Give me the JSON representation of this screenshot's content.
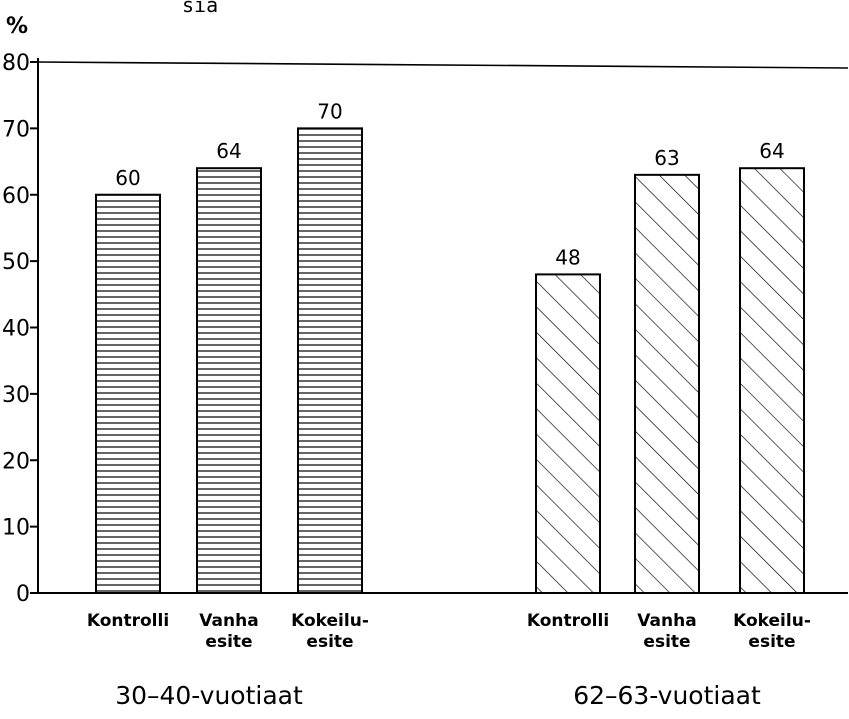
{
  "header_fragment": "sia",
  "chart_data": {
    "type": "bar",
    "ylabel": "%",
    "ylim": [
      0,
      80
    ],
    "yticks": [
      "0",
      "10",
      "20",
      "30",
      "40",
      "50",
      "60",
      "70",
      "80"
    ],
    "groups": [
      {
        "name": "30–40-vuotiaat",
        "pattern": "horizontal",
        "categories": [
          {
            "label": [
              "Kontrolli"
            ],
            "value": 60
          },
          {
            "label": [
              "Vanha",
              "esite"
            ],
            "value": 64
          },
          {
            "label": [
              "Kokeilu-",
              "esite"
            ],
            "value": 70
          }
        ]
      },
      {
        "name": "62–63-vuotiaat",
        "pattern": "diagonal",
        "categories": [
          {
            "label": [
              "Kontrolli"
            ],
            "value": 48
          },
          {
            "label": [
              "Vanha",
              "esite"
            ],
            "value": 63
          },
          {
            "label": [
              "Kokeilu-",
              "esite"
            ],
            "value": 64
          }
        ]
      }
    ]
  }
}
